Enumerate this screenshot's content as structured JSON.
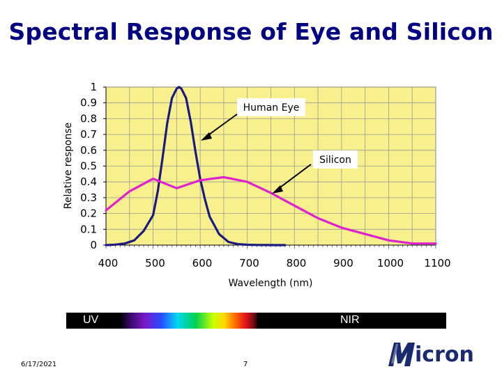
{
  "slide": {
    "title": "Spectral Response of Eye and Silicon",
    "date": "6/17/2021",
    "page_number": "7",
    "logo_text": "Micron"
  },
  "spectrum_band": {
    "left_label": "UV",
    "right_label": "NIR"
  },
  "colors": {
    "title": "#000080",
    "plot_background": "#f8f08c",
    "human_eye_line": "#1a1a80",
    "silicon_line": "#e020d0",
    "arrow": "#000000"
  },
  "chart_data": {
    "type": "line",
    "title": "",
    "xlabel": "Wavelength (nm)",
    "ylabel": "Relative response",
    "xlim": [
      400,
      1100
    ],
    "ylim": [
      0,
      1
    ],
    "x_ticks": [
      "400",
      "500",
      "600",
      "700",
      "800",
      "900",
      "1000",
      "1100"
    ],
    "y_ticks": [
      "0",
      "0.1",
      "0.2",
      "0.3",
      "0.4",
      "0.5",
      "0.6",
      "0.7",
      "0.8",
      "0.9",
      "1"
    ],
    "grid": true,
    "series": [
      {
        "name": "Human Eye",
        "x": [
          400,
          420,
          440,
          460,
          480,
          500,
          510,
          520,
          530,
          540,
          550,
          555,
          560,
          570,
          580,
          590,
          600,
          610,
          620,
          640,
          660,
          680,
          700,
          720,
          740,
          760,
          780
        ],
        "y": [
          0,
          0.003,
          0.01,
          0.03,
          0.09,
          0.19,
          0.34,
          0.55,
          0.77,
          0.93,
          0.99,
          1.0,
          0.99,
          0.93,
          0.78,
          0.59,
          0.42,
          0.29,
          0.18,
          0.07,
          0.02,
          0.006,
          0.002,
          0.001,
          0.0005,
          0.0002,
          0
        ]
      },
      {
        "name": "Silicon",
        "x": [
          400,
          450,
          500,
          550,
          600,
          650,
          700,
          750,
          800,
          850,
          900,
          950,
          1000,
          1050,
          1100
        ],
        "y": [
          0.22,
          0.34,
          0.42,
          0.36,
          0.41,
          0.43,
          0.4,
          0.33,
          0.25,
          0.17,
          0.11,
          0.07,
          0.03,
          0.01,
          0.01
        ]
      }
    ],
    "annotations": [
      {
        "text": "Human Eye",
        "points_to_x": 590,
        "points_to_y": 0.68
      },
      {
        "text": "Silicon",
        "points_to_x": 760,
        "points_to_y": 0.32
      }
    ]
  }
}
